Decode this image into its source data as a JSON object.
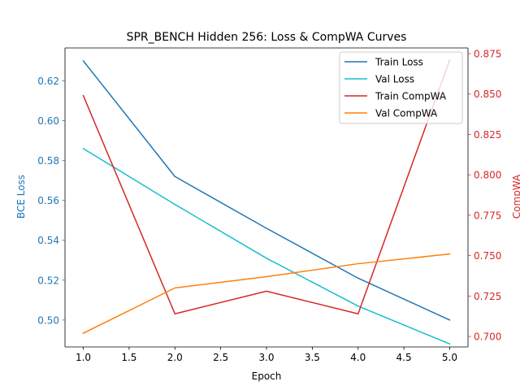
{
  "chart_data": {
    "type": "line",
    "title": "SPR_BENCH Hidden 256: Loss & CompWA Curves",
    "xlabel": "Epoch",
    "ylabel_left": "BCE Loss",
    "ylabel_right": "CompWA",
    "x": [
      1,
      2,
      3,
      4,
      5
    ],
    "xlim": [
      0.8,
      5.2
    ],
    "xticks": [
      1.0,
      1.5,
      2.0,
      2.5,
      3.0,
      3.5,
      4.0,
      4.5,
      5.0
    ],
    "xtick_labels": [
      "1.0",
      "1.5",
      "2.0",
      "2.5",
      "3.0",
      "3.5",
      "4.0",
      "4.5",
      "5.0"
    ],
    "ylim_left": [
      0.4865,
      0.6365
    ],
    "yticks_left": [
      0.5,
      0.52,
      0.54,
      0.56,
      0.58,
      0.6,
      0.62
    ],
    "ytick_labels_left": [
      "0.50",
      "0.52",
      "0.54",
      "0.56",
      "0.58",
      "0.60",
      "0.62"
    ],
    "ylim_right": [
      0.6935,
      0.8785
    ],
    "yticks_right": [
      0.7,
      0.725,
      0.75,
      0.775,
      0.8,
      0.825,
      0.85,
      0.875
    ],
    "ytick_labels_right": [
      "0.700",
      "0.725",
      "0.750",
      "0.775",
      "0.800",
      "0.825",
      "0.850",
      "0.875"
    ],
    "left_axis_color": "#1f77b4",
    "right_axis_color": "#d62728",
    "legend_position": "top-right",
    "grid": false,
    "series": [
      {
        "name": "Train Loss",
        "axis": "left",
        "color": "#1f77b4",
        "values": [
          0.63,
          0.572,
          0.546,
          0.521,
          0.5
        ]
      },
      {
        "name": "Val Loss",
        "axis": "left",
        "color": "#17becf",
        "values": [
          0.586,
          0.558,
          0.531,
          0.507,
          0.488
        ]
      },
      {
        "name": "Train CompWA",
        "axis": "right",
        "color": "#d62728",
        "values": [
          0.849,
          0.714,
          0.728,
          0.714,
          0.871
        ]
      },
      {
        "name": "Val CompWA",
        "axis": "right",
        "color": "#ff7f0e",
        "values": [
          0.702,
          0.73,
          0.737,
          0.745,
          0.751
        ]
      }
    ]
  }
}
